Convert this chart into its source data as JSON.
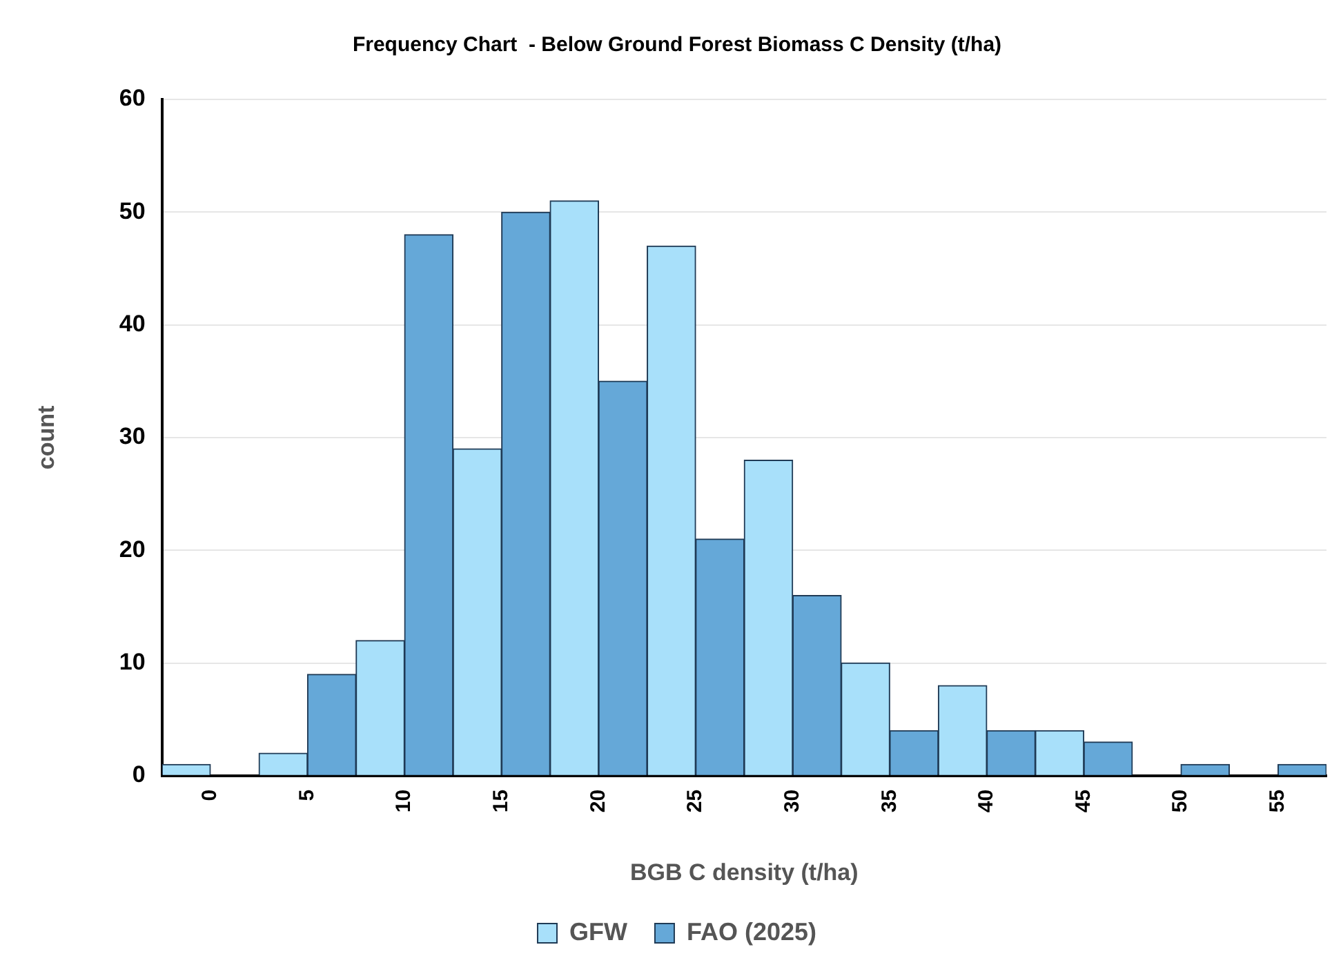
{
  "chart_data": {
    "type": "bar",
    "title": "Frequency Chart  - Below Ground Forest Biomass C Density (t/ha)",
    "xlabel": "BGB C density (t/ha)",
    "ylabel": "count",
    "categories": [
      "0",
      "5",
      "10",
      "15",
      "20",
      "25",
      "30",
      "35",
      "40",
      "45",
      "50",
      "55"
    ],
    "series": [
      {
        "name": "GFW",
        "color": "#a8e0fa",
        "values": [
          1,
          2,
          12,
          29,
          51,
          47,
          28,
          10,
          8,
          4,
          0,
          0
        ]
      },
      {
        "name": "FAO (2025)",
        "color": "#65a8d8",
        "values": [
          0,
          9,
          48,
          50,
          35,
          21,
          16,
          4,
          4,
          3,
          1,
          1
        ]
      }
    ],
    "ylim": [
      0,
      60
    ],
    "yticks": [
      0,
      10,
      20,
      30,
      40,
      50,
      60
    ],
    "grid": "y",
    "legend": "bottom"
  }
}
